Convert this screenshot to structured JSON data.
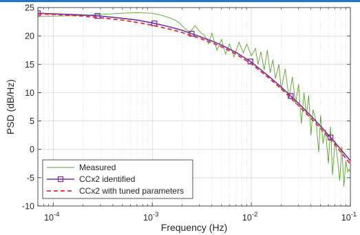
{
  "chart_data": {
    "type": "line",
    "title": "",
    "xlabel": "Frequency (Hz)",
    "ylabel": "PSD (dB/Hz)",
    "xscale": "log",
    "xlim": [
      7e-05,
      0.1
    ],
    "ylim": [
      -10,
      25
    ],
    "grid": true,
    "legend_placement": "bottom-left",
    "x_ticks": [
      {
        "value": 0.0001,
        "base": "10",
        "exp": "-4"
      },
      {
        "value": 0.001,
        "base": "10",
        "exp": "-3"
      },
      {
        "value": 0.01,
        "base": "10",
        "exp": "-2"
      },
      {
        "value": 0.1,
        "base": "10",
        "exp": "-1"
      }
    ],
    "y_ticks": [
      -10,
      -5,
      0,
      5,
      10,
      15,
      20,
      25
    ],
    "series": [
      {
        "name": "Measured",
        "color": "#5aa02c",
        "style": "solid-thin",
        "x": [
          7e-05,
          0.0001,
          0.0002,
          0.0003,
          0.0005,
          0.0007,
          0.001,
          0.0012,
          0.0015,
          0.0017,
          0.0019,
          0.0021,
          0.0024,
          0.0027,
          0.003,
          0.0034,
          0.0037,
          0.004,
          0.0045,
          0.005,
          0.0055,
          0.006,
          0.0067,
          0.0075,
          0.0083,
          0.009,
          0.01,
          0.011,
          0.0117,
          0.0125,
          0.0135,
          0.0145,
          0.0155,
          0.0165,
          0.0175,
          0.019,
          0.02,
          0.022,
          0.024,
          0.026,
          0.028,
          0.03,
          0.032,
          0.034,
          0.036,
          0.038,
          0.04,
          0.042,
          0.045,
          0.048,
          0.05,
          0.053,
          0.056,
          0.06,
          0.063,
          0.066,
          0.07,
          0.074,
          0.078,
          0.082,
          0.086,
          0.09,
          0.094,
          0.097,
          0.1
        ],
        "y": [
          23.4,
          23.5,
          23.6,
          23.8,
          24.0,
          24.1,
          24.0,
          23.7,
          23.2,
          22.8,
          22.2,
          21.4,
          20.6,
          21.8,
          20.8,
          20.0,
          18.6,
          20.5,
          17.5,
          19.4,
          16.8,
          18.6,
          16.3,
          18.9,
          17.0,
          18.6,
          16.5,
          17.8,
          15.0,
          17.2,
          14.0,
          17.5,
          13.5,
          15.8,
          12.5,
          15.0,
          10.5,
          14.2,
          9.0,
          12.8,
          8.0,
          11.5,
          4.5,
          10.0,
          6.0,
          9.5,
          2.5,
          7.0,
          5.0,
          -0.5,
          6.0,
          1.0,
          3.5,
          -2.5,
          4.0,
          -4.5,
          1.5,
          -1.5,
          -5.5,
          0.5,
          -6.5,
          -2.0,
          -4.0,
          -3.5,
          -4.0
        ]
      },
      {
        "name": "CCx2 identified",
        "color": "#7030a0",
        "style": "solid-markers",
        "markers_x": [
          7e-05,
          0.00028,
          0.00105,
          0.0025,
          0.0098,
          0.025,
          0.063
        ],
        "x": [
          7e-05,
          0.0001,
          0.0002,
          0.0003,
          0.0005,
          0.0007,
          0.001,
          0.0015,
          0.002,
          0.003,
          0.004,
          0.005,
          0.007,
          0.01,
          0.015,
          0.02,
          0.03,
          0.04,
          0.05,
          0.07,
          0.1
        ],
        "y": [
          24.0,
          23.9,
          23.7,
          23.5,
          23.1,
          22.8,
          22.3,
          21.6,
          21.0,
          19.9,
          19.1,
          18.4,
          17.1,
          15.4,
          12.9,
          11.0,
          8.1,
          5.9,
          4.1,
          1.2,
          -2.0
        ]
      },
      {
        "name": "CCx2 with tuned parameters",
        "color": "#e8262a",
        "style": "dashed",
        "x": [
          7e-05,
          0.0001,
          0.0002,
          0.0003,
          0.0005,
          0.0007,
          0.001,
          0.0015,
          0.002,
          0.003,
          0.004,
          0.005,
          0.007,
          0.01,
          0.015,
          0.02,
          0.03,
          0.04,
          0.05,
          0.07,
          0.1
        ],
        "y": [
          23.9,
          23.8,
          23.5,
          23.2,
          22.8,
          22.4,
          21.9,
          21.2,
          20.6,
          19.6,
          18.8,
          18.1,
          16.8,
          15.1,
          12.6,
          10.7,
          7.7,
          5.5,
          3.7,
          0.8,
          -2.6
        ]
      }
    ]
  }
}
